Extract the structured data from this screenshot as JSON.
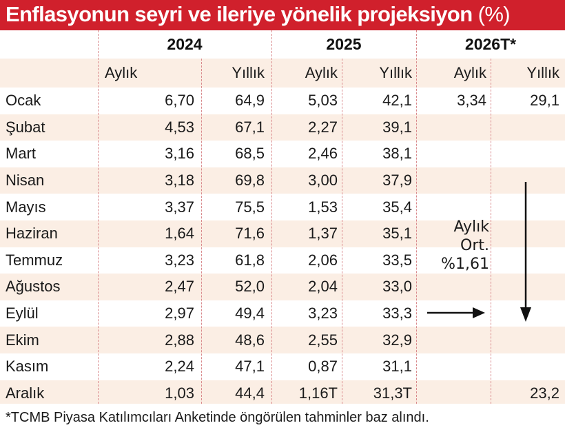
{
  "title": "Enflasyonun seyri ve ileriye yönelik projeksiyon",
  "title_unit": "(%)",
  "chart_data": {
    "type": "table",
    "years": [
      "2024",
      "2025",
      "2026T*"
    ],
    "subheaders": [
      "Aylık",
      "Yıllık",
      "Aylık",
      "Yıllık",
      "Aylık",
      "Yıllık"
    ],
    "rows": [
      {
        "month": "Ocak",
        "cells": [
          "6,70",
          "64,9",
          "5,03",
          "42,1",
          "3,34",
          "29,1"
        ]
      },
      {
        "month": "Şubat",
        "cells": [
          "4,53",
          "67,1",
          "2,27",
          "39,1",
          "",
          ""
        ]
      },
      {
        "month": "Mart",
        "cells": [
          "3,16",
          "68,5",
          "2,46",
          "38,1",
          "",
          ""
        ]
      },
      {
        "month": "Nisan",
        "cells": [
          "3,18",
          "69,8",
          "3,00",
          "37,9",
          "",
          ""
        ]
      },
      {
        "month": "Mayıs",
        "cells": [
          "3,37",
          "75,5",
          "1,53",
          "35,4",
          "",
          ""
        ]
      },
      {
        "month": "Haziran",
        "cells": [
          "1,64",
          "71,6",
          "1,37",
          "35,1",
          "",
          ""
        ]
      },
      {
        "month": "Temmuz",
        "cells": [
          "3,23",
          "61,8",
          "2,06",
          "33,5",
          "",
          ""
        ]
      },
      {
        "month": "Ağustos",
        "cells": [
          "2,47",
          "52,0",
          "2,04",
          "33,0",
          "",
          ""
        ]
      },
      {
        "month": "Eylül",
        "cells": [
          "2,97",
          "49,4",
          "3,23",
          "33,3",
          "",
          ""
        ]
      },
      {
        "month": "Ekim",
        "cells": [
          "2,88",
          "48,6",
          "2,55",
          "32,9",
          "",
          ""
        ]
      },
      {
        "month": "Kasım",
        "cells": [
          "2,24",
          "47,1",
          "0,87",
          "31,1",
          "",
          ""
        ]
      },
      {
        "month": "Aralık",
        "cells": [
          "1,03",
          "44,4",
          "1,16T",
          "31,3T",
          "",
          "23,2"
        ]
      }
    ],
    "annotation_lines": [
      "Aylık",
      "Ort.",
      "%1,61"
    ]
  },
  "footer": "*TCMB Piyasa Katılımcıları Anketinde öngörülen tahminler baz alındı.",
  "colors": {
    "title_bg": "#d0202c",
    "row_alt_bg": "#fbeee4",
    "row_bg": "#ffffff",
    "divider": "#d9898c"
  }
}
